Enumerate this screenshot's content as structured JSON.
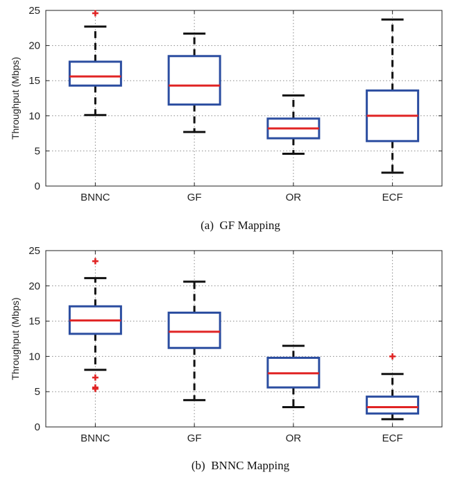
{
  "chart_data": [
    {
      "type": "box",
      "caption": "(a)  GF Mapping",
      "ylabel": "Throughput (Mbps)",
      "ylim": [
        0,
        25
      ],
      "yticks": [
        0,
        5,
        10,
        15,
        20,
        25
      ],
      "grid": true,
      "categories": [
        "BNNC",
        "GF",
        "OR",
        "ECF"
      ],
      "boxes": [
        {
          "whisker_low": 10.1,
          "q1": 14.3,
          "median": 15.6,
          "q3": 17.7,
          "whisker_high": 22.7,
          "outliers": [
            24.6
          ]
        },
        {
          "whisker_low": 7.7,
          "q1": 11.6,
          "median": 14.3,
          "q3": 18.5,
          "whisker_high": 21.7,
          "outliers": []
        },
        {
          "whisker_low": 4.6,
          "q1": 6.8,
          "median": 8.2,
          "q3": 9.6,
          "whisker_high": 12.9,
          "outliers": []
        },
        {
          "whisker_low": 1.9,
          "q1": 6.4,
          "median": 10.0,
          "q3": 13.6,
          "whisker_high": 23.7,
          "outliers": []
        }
      ],
      "colors": {
        "box": "#2b4da0",
        "median": "#e02424",
        "whisker": "#111111",
        "outlier": "#e02424"
      }
    },
    {
      "type": "box",
      "caption": "(b)  BNNC Mapping",
      "ylabel": "Throughput (Mbps)",
      "ylim": [
        0,
        25
      ],
      "yticks": [
        0,
        5,
        10,
        15,
        20,
        25
      ],
      "grid": true,
      "categories": [
        "BNNC",
        "GF",
        "OR",
        "ECF"
      ],
      "boxes": [
        {
          "whisker_low": 8.1,
          "q1": 13.2,
          "median": 15.1,
          "q3": 17.1,
          "whisker_high": 21.1,
          "outliers": [
            23.5,
            7.0,
            5.6,
            5.4
          ]
        },
        {
          "whisker_low": 3.8,
          "q1": 11.2,
          "median": 13.5,
          "q3": 16.2,
          "whisker_high": 20.6,
          "outliers": []
        },
        {
          "whisker_low": 2.8,
          "q1": 5.6,
          "median": 7.6,
          "q3": 9.8,
          "whisker_high": 11.5,
          "outliers": []
        },
        {
          "whisker_low": 1.1,
          "q1": 1.9,
          "median": 2.8,
          "q3": 4.3,
          "whisker_high": 7.5,
          "outliers": [
            10.0
          ]
        }
      ],
      "colors": {
        "box": "#2b4da0",
        "median": "#e02424",
        "whisker": "#111111",
        "outlier": "#e02424"
      }
    }
  ]
}
